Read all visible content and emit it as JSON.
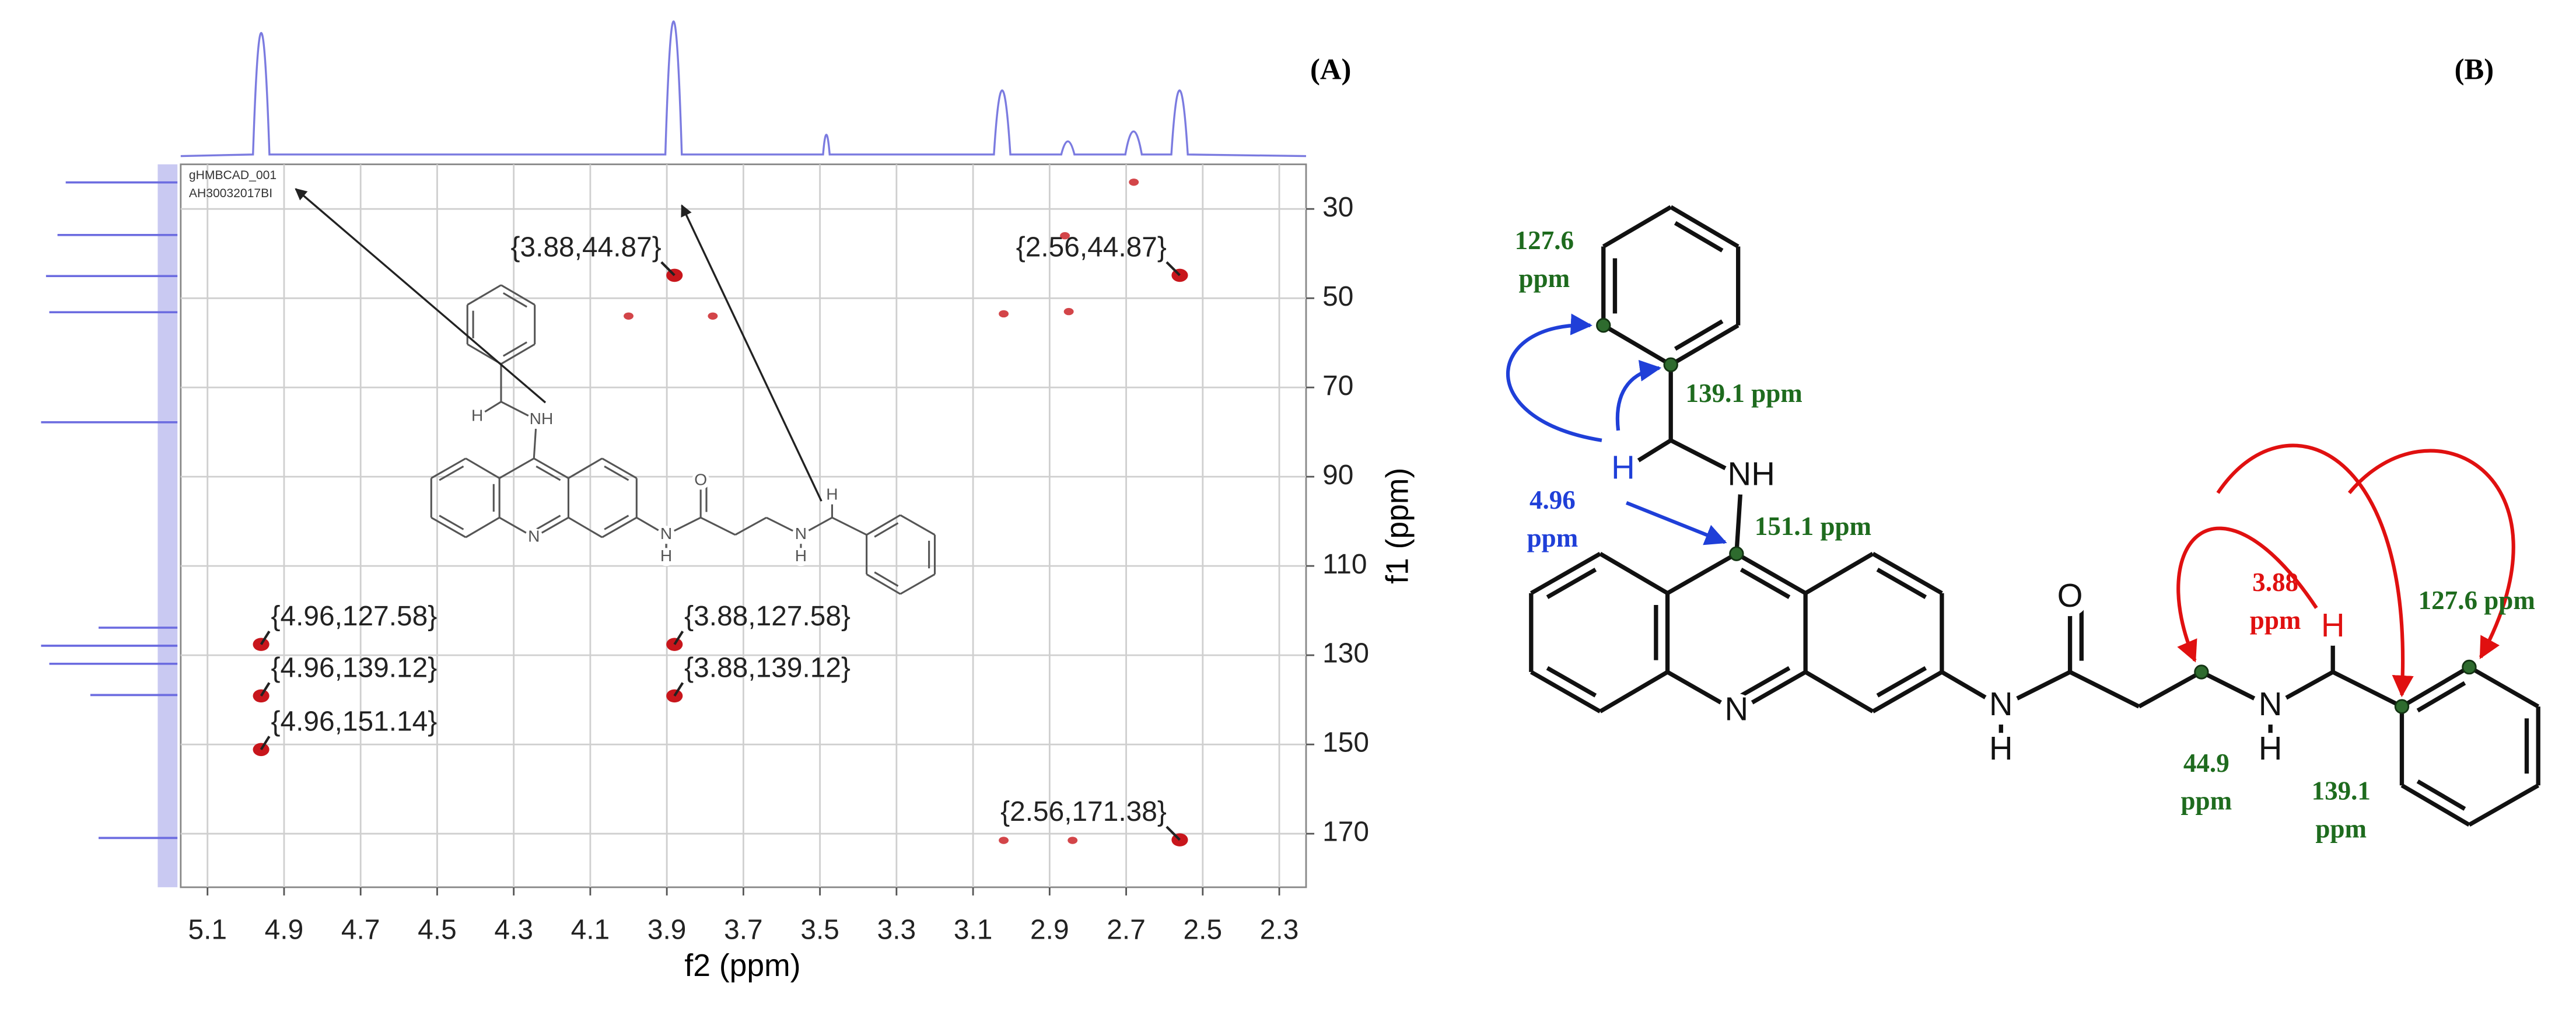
{
  "chart_data": {
    "type": "scatter",
    "panel_label": "(A)",
    "x_label": "f2 (ppm)",
    "y_label": "f1 (ppm)",
    "xlim": [
      5.17,
      2.23
    ],
    "ylim": [
      182,
      20
    ],
    "xticks": [
      5.1,
      4.9,
      4.7,
      4.5,
      4.3,
      4.1,
      3.9,
      3.7,
      3.5,
      3.3,
      3.1,
      2.9,
      2.7,
      2.5,
      2.3
    ],
    "yticks": [
      30,
      50,
      70,
      90,
      110,
      130,
      150,
      170
    ],
    "grid": true,
    "color": "#c8161c",
    "annotations": [
      "gHMBCAD_001",
      "AH30032017BI"
    ],
    "series": [
      {
        "x": [
          4.96,
          4.96,
          4.96,
          3.88,
          3.88,
          3.88,
          2.56,
          2.56
        ],
        "values": [
          127.58,
          139.12,
          151.14,
          127.58,
          139.12,
          44.87,
          44.87,
          171.38
        ],
        "value_labels": [
          "{4.96,127.58}",
          "{4.96,139.12}",
          "{4.96,151.14}",
          "{3.88,127.58}",
          "{3.88,139.12}",
          "{3.88,44.87}",
          "{2.56,44.87}",
          "{2.56,171.38}"
        ]
      },
      {
        "x": [
          3.02,
          2.85,
          2.68,
          3.02,
          2.84,
          4.0,
          3.78,
          2.86
        ],
        "values": [
          53.5,
          53,
          24,
          171.5,
          171.5,
          54,
          54,
          36
        ]
      }
    ]
  },
  "panel_b": {
    "label": "(B)",
    "atoms": [
      {
        "text": "NH"
      },
      {
        "text": "H",
        "color": "#1f3fd8"
      },
      {
        "text": "N"
      },
      {
        "text": "N"
      },
      {
        "text": "H"
      },
      {
        "text": "O"
      },
      {
        "text": "N"
      },
      {
        "text": "H"
      },
      {
        "text": "H",
        "color": "#e01010"
      }
    ],
    "annotations": [
      {
        "lines": [
          "127.6",
          "ppm"
        ],
        "color": "#1e6b1e"
      },
      {
        "lines": [
          "139.1 ppm"
        ],
        "color": "#1e6b1e"
      },
      {
        "lines": [
          "4.96",
          "ppm"
        ],
        "color": "#1f3fd8"
      },
      {
        "lines": [
          "151.1 ppm"
        ],
        "color": "#1e6b1e"
      },
      {
        "lines": [
          "3.88",
          "ppm"
        ],
        "color": "#e01010"
      },
      {
        "lines": [
          "127.6 ppm"
        ],
        "color": "#1e6b1e"
      },
      {
        "lines": [
          "44.9",
          "ppm"
        ],
        "color": "#1e6b1e"
      },
      {
        "lines": [
          "139.1",
          "ppm"
        ],
        "color": "#1e6b1e"
      }
    ]
  }
}
